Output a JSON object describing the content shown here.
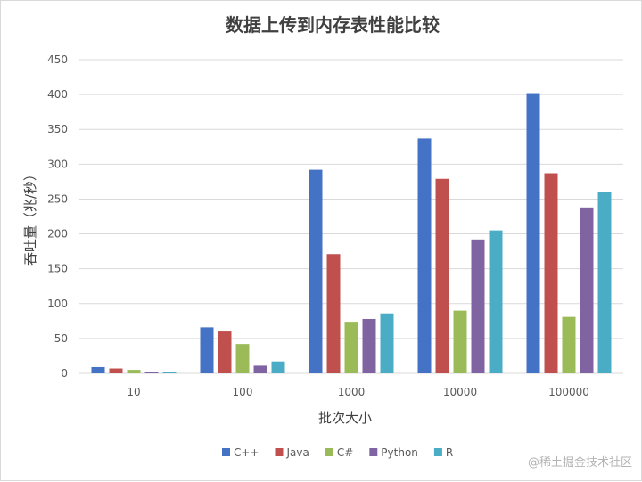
{
  "chart_data": {
    "type": "bar",
    "title": "数据上传到内存表性能比较",
    "xlabel": "批次大小",
    "ylabel": "吞吐量（兆/秒）",
    "categories": [
      "10",
      "100",
      "1000",
      "10000",
      "100000"
    ],
    "ylim": [
      0,
      450
    ],
    "yticks": [
      0,
      50,
      100,
      150,
      200,
      250,
      300,
      350,
      400,
      450
    ],
    "grid": true,
    "legend_position": "bottom",
    "series": [
      {
        "name": "C++",
        "color": "#4472C4",
        "values": [
          9,
          66,
          292,
          337,
          402
        ]
      },
      {
        "name": "Java",
        "color": "#C0504D",
        "values": [
          7,
          60,
          171,
          279,
          287
        ]
      },
      {
        "name": "C#",
        "color": "#9BBB59",
        "values": [
          5,
          42,
          74,
          90,
          81
        ]
      },
      {
        "name": "Python",
        "color": "#8064A2",
        "values": [
          2,
          11,
          78,
          192,
          238
        ]
      },
      {
        "name": "R",
        "color": "#4BACC6",
        "values": [
          2,
          17,
          86,
          205,
          260
        ]
      }
    ]
  },
  "watermark": "@稀土掘金技术社区"
}
